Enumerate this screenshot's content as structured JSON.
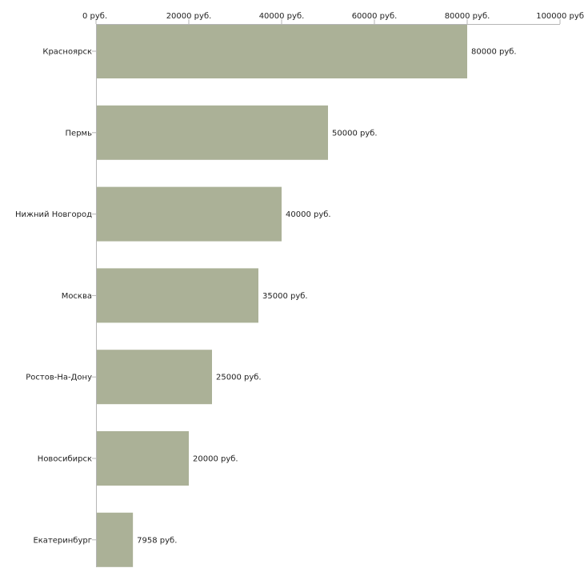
{
  "chart_data": {
    "type": "bar",
    "orientation": "horizontal",
    "title": "",
    "xlabel": "",
    "ylabel": "",
    "xlim": [
      0,
      100000
    ],
    "x_ticks": [
      0,
      20000,
      40000,
      60000,
      80000,
      100000
    ],
    "x_tick_labels": [
      "0 руб.",
      "20000 руб.",
      "40000 руб.",
      "60000 руб.",
      "80000 руб.",
      "100000 руб"
    ],
    "categories": [
      "Красноярск",
      "Пермь",
      "Нижний Новгород",
      "Москва",
      "Ростов-На-Дону",
      "Новосибирск",
      "Екатеринбург"
    ],
    "values": [
      80000,
      50000,
      40000,
      35000,
      25000,
      20000,
      7958
    ],
    "value_labels": [
      "80000 руб.",
      "50000 руб.",
      "40000 руб.",
      "35000 руб.",
      "25000 руб.",
      "20000 руб.",
      "7958 руб."
    ],
    "bar_color": "#abb197",
    "axis_color": "#b5b5b5",
    "grid": false,
    "legend": "none"
  }
}
